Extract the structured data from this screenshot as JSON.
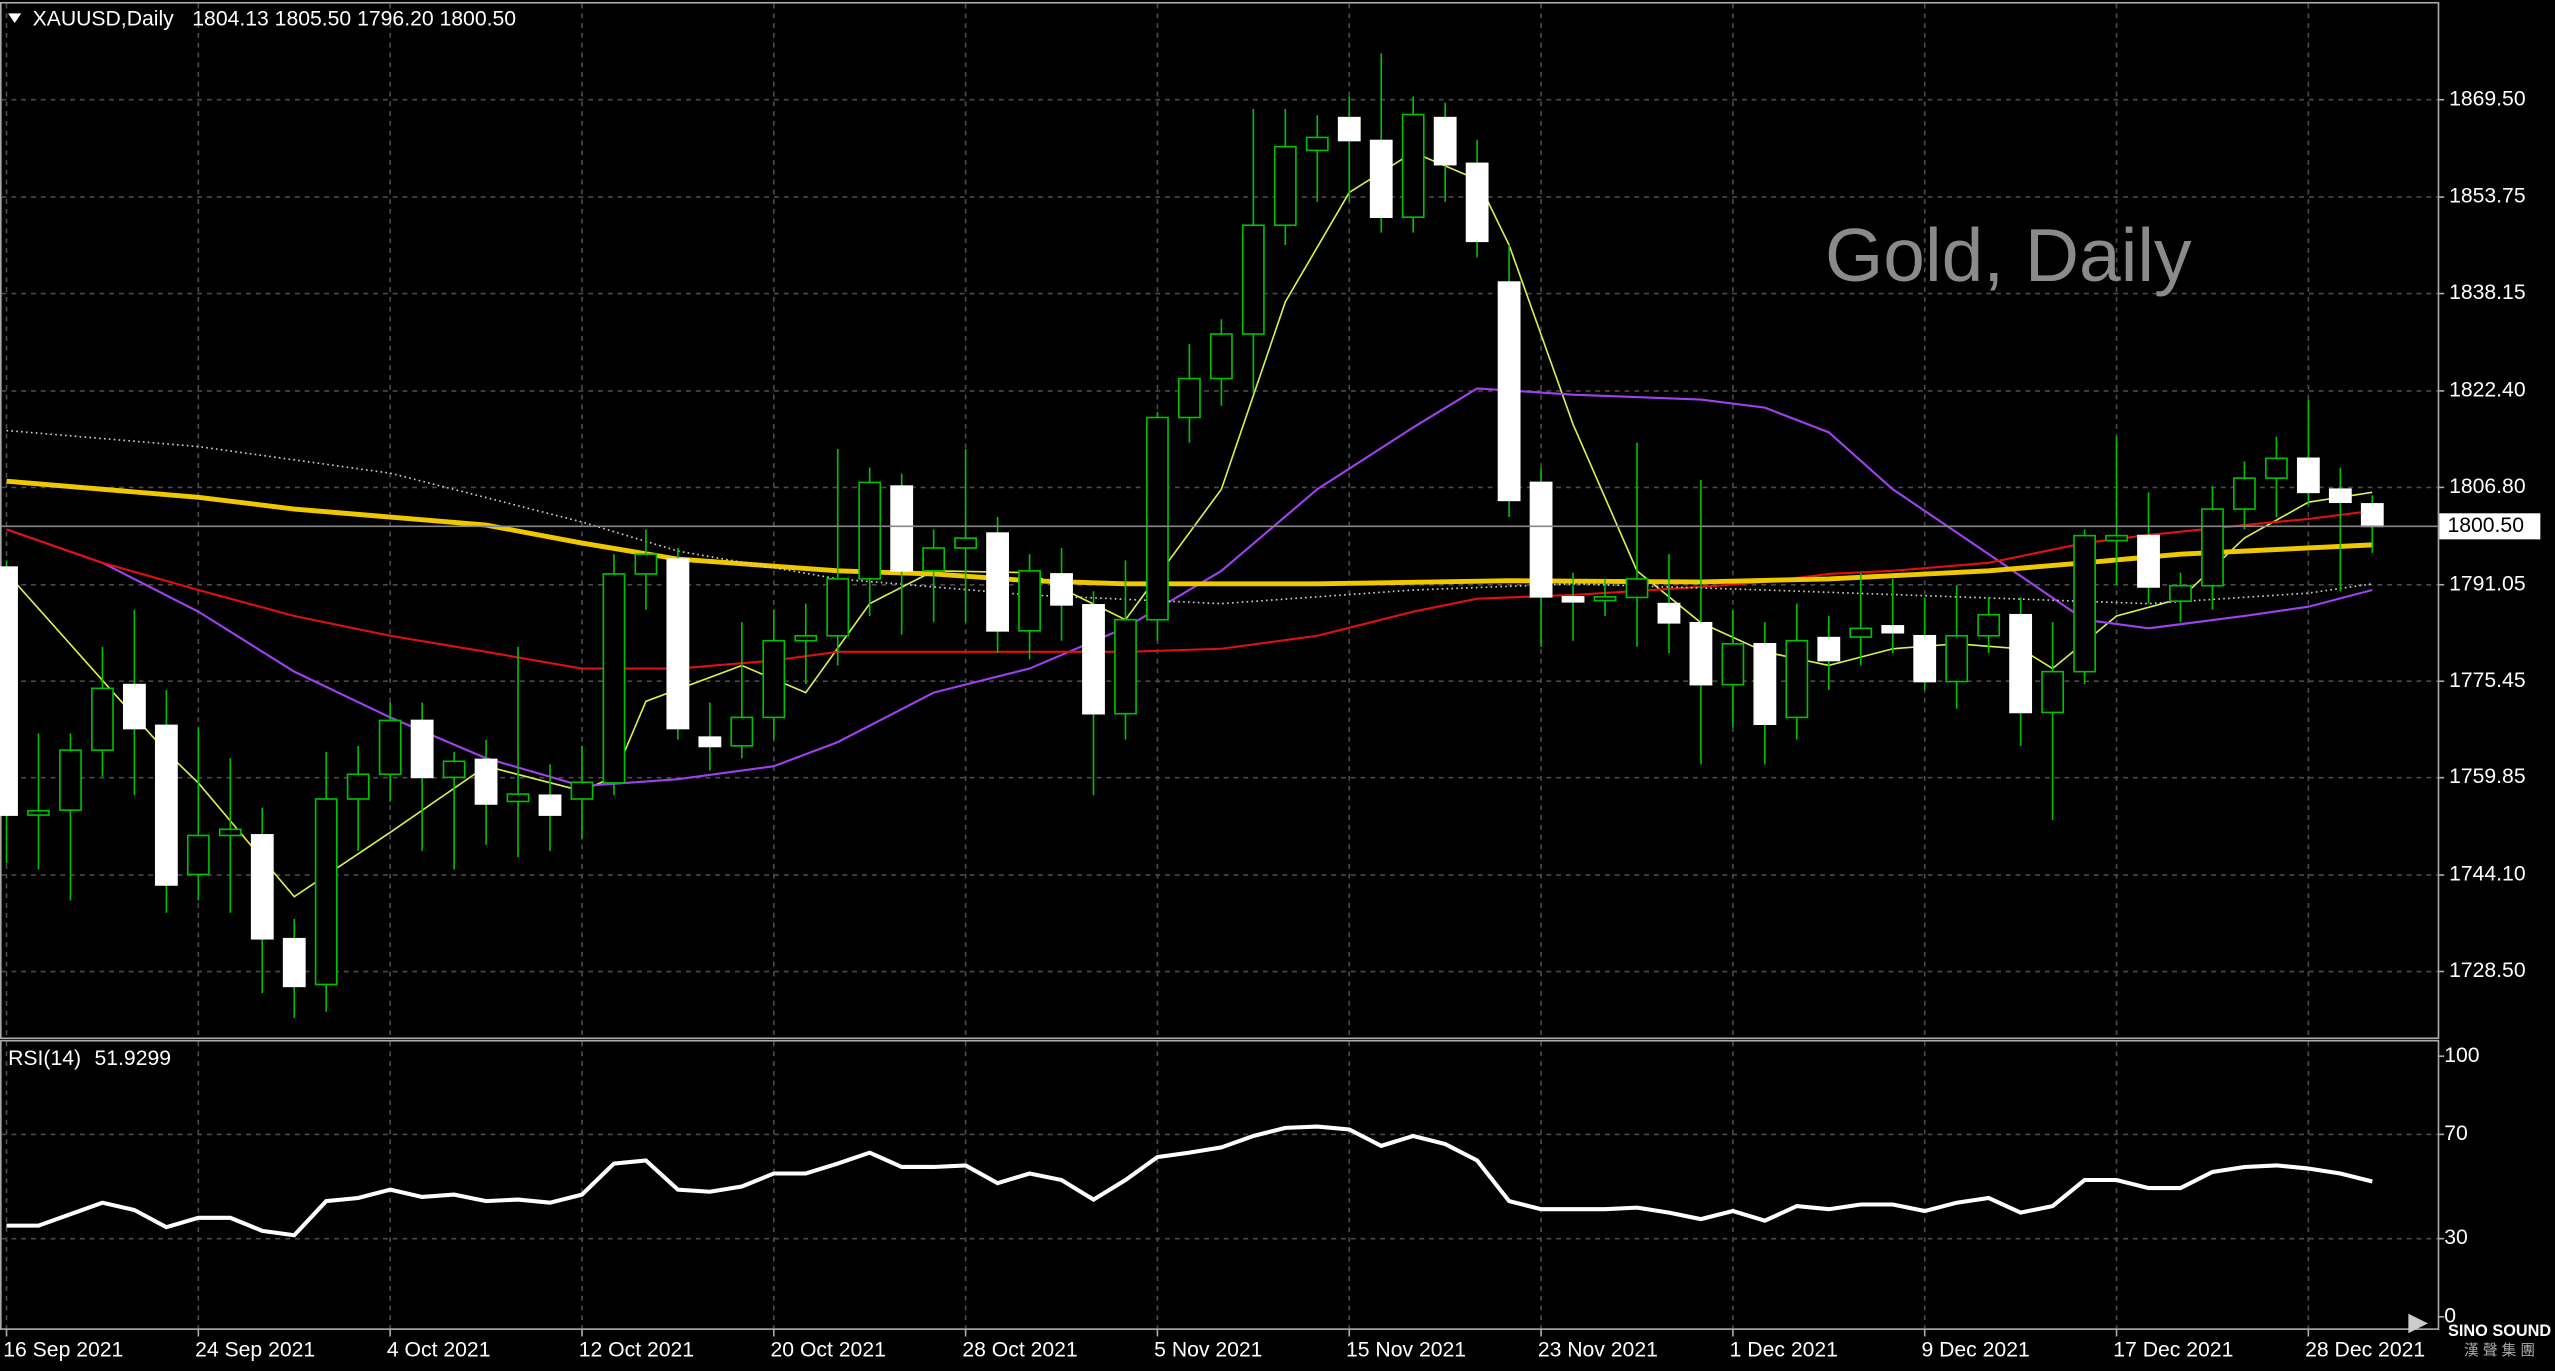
{
  "header": {
    "symbol": "XAUUSD,Daily",
    "ohlc": "1804.13 1805.50 1796.20 1800.50",
    "watermark": "Gold, Daily",
    "logo": "SINO SOUND",
    "logo_sub": "漢 聲 集 團"
  },
  "chart_data": [
    {
      "type": "candlestick",
      "bull_fill": "#000000",
      "bear_fill": "#ffffff",
      "wick_color": "#00c000",
      "grid": true,
      "ylim": [
        1717.7,
        1885.05
      ],
      "yticks": [
        {
          "value": 1869.5,
          "label": "1869.50"
        },
        {
          "value": 1853.75,
          "label": "1853.75"
        },
        {
          "value": 1838.15,
          "label": "1838.15"
        },
        {
          "value": 1822.4,
          "label": "1822.40"
        },
        {
          "value": 1806.8,
          "label": "1806.80"
        },
        {
          "value": 1791.05,
          "label": "1791.05"
        },
        {
          "value": 1775.45,
          "label": "1775.45"
        },
        {
          "value": 1759.85,
          "label": "1759.85"
        },
        {
          "value": 1744.1,
          "label": "1744.10"
        },
        {
          "value": 1728.5,
          "label": "1728.50"
        }
      ],
      "last_price": {
        "value": 1800.5,
        "label": "1800.50"
      },
      "open": [
        1793.9,
        1753.8,
        1754.6,
        1764.3,
        1774.9,
        1768.3,
        1744.2,
        1750.5,
        1750.6,
        1733.8,
        1726.4,
        1756.4,
        1760.4,
        1769.1,
        1759.9,
        1762.8,
        1756,
        1757,
        1756.4,
        1759,
        1792.8,
        1795.2,
        1766.4,
        1765,
        1769.6,
        1782,
        1782.8,
        1792,
        1807,
        1793.3,
        1797,
        1799.4,
        1783.6,
        1792.8,
        1787.8,
        1770.2,
        1785.4,
        1818.1,
        1824.4,
        1831.6,
        1849.2,
        1861.3,
        1866.6,
        1862.9,
        1850.5,
        1866.6,
        1859.2,
        1840,
        1807.6,
        1789.1,
        1788.5,
        1789,
        1788,
        1784.9,
        1774.9,
        1781.5,
        1769.6,
        1782.5,
        1782.6,
        1784.4,
        1782.8,
        1775.4,
        1782.8,
        1786.2,
        1770.4,
        1777,
        1798.2,
        1799,
        1788.4,
        1790.9,
        1803.3,
        1808.3,
        1811.5,
        1806.5,
        1804.13
      ],
      "high": [
        1795,
        1767,
        1767,
        1781,
        1787,
        1774,
        1768,
        1763,
        1755,
        1737,
        1764,
        1765,
        1772,
        1772,
        1764,
        1766,
        1781,
        1762,
        1765,
        1796,
        1800,
        1797,
        1772,
        1785,
        1787,
        1788,
        1813,
        1810,
        1809,
        1800,
        1813,
        1802,
        1796,
        1797,
        1790,
        1795,
        1819,
        1830,
        1834,
        1868,
        1868,
        1867,
        1870,
        1877,
        1870,
        1869,
        1863,
        1846,
        1810,
        1793,
        1792,
        1814,
        1796,
        1808,
        1787,
        1785,
        1788,
        1786,
        1793,
        1792,
        1789,
        1791,
        1789,
        1789,
        1785,
        1800,
        1815,
        1806,
        1793,
        1807,
        1811,
        1815,
        1821,
        1810,
        1805.5
      ],
      "low": [
        1746,
        1745,
        1740,
        1760,
        1757,
        1738,
        1740,
        1738,
        1725,
        1721,
        1722,
        1748,
        1756,
        1748,
        1745,
        1749,
        1747,
        1748,
        1750,
        1757,
        1787,
        1766,
        1761,
        1763,
        1766,
        1775,
        1778,
        1786,
        1783,
        1785,
        1785,
        1780,
        1779,
        1782,
        1757,
        1766,
        1782,
        1814,
        1820,
        1822,
        1846,
        1853,
        1853,
        1848,
        1848,
        1853,
        1844,
        1802,
        1781,
        1782,
        1786,
        1781,
        1780,
        1762,
        1768,
        1762,
        1766,
        1774,
        1778,
        1780,
        1774,
        1771,
        1780,
        1765,
        1753,
        1775,
        1791,
        1788,
        1785,
        1787,
        1800,
        1802,
        1804,
        1790,
        1796.2
      ],
      "close": [
        1753.8,
        1754.5,
        1764.3,
        1774.3,
        1767.8,
        1742.5,
        1750.5,
        1751.5,
        1733.8,
        1726.1,
        1756.4,
        1760.4,
        1769.1,
        1759.9,
        1762.5,
        1755.6,
        1757.2,
        1753.8,
        1759.1,
        1792.8,
        1796,
        1767.8,
        1764.9,
        1769.6,
        1782,
        1782.8,
        1792,
        1807.6,
        1793.3,
        1797,
        1798.6,
        1783.6,
        1793.3,
        1787.8,
        1770.2,
        1785.4,
        1818.1,
        1824.4,
        1831.6,
        1849.2,
        1861.9,
        1863.4,
        1862.9,
        1850.5,
        1867.1,
        1859,
        1846.6,
        1804.7,
        1789.1,
        1788.3,
        1789.1,
        1792,
        1784.9,
        1774.9,
        1781.5,
        1768.5,
        1782,
        1778.8,
        1784,
        1783.3,
        1775.4,
        1782.8,
        1786.2,
        1770.4,
        1777,
        1799,
        1799,
        1790.7,
        1790.9,
        1803.3,
        1808.3,
        1811.5,
        1806,
        1804.4,
        1800.5
      ],
      "series": [
        {
          "color": "#d8f050",
          "width": 1,
          "x": [
            0,
            5,
            6,
            9,
            12,
            15,
            18,
            19,
            20,
            23,
            25,
            27,
            29,
            32,
            35,
            38,
            40,
            42,
            44,
            46,
            47,
            49,
            51,
            53,
            55,
            57,
            59,
            61,
            63,
            64,
            66,
            68,
            70,
            72,
            74
          ],
          "values": [
            1793,
            1764,
            1759,
            1740.6,
            1751,
            1761.7,
            1757.7,
            1760,
            1772.2,
            1778,
            1773.6,
            1788,
            1793.3,
            1793,
            1785.4,
            1806.5,
            1836.8,
            1854.5,
            1861,
            1856.6,
            1846,
            1817,
            1793.3,
            1784.9,
            1780.2,
            1778,
            1780.7,
            1781.5,
            1780.7,
            1777.5,
            1786,
            1788.8,
            1798.6,
            1804.4,
            1806
          ]
        },
        {
          "color": "#a040f0",
          "width": 1.3,
          "x": [
            0,
            3,
            6,
            9,
            12,
            15,
            18,
            21,
            24,
            26,
            29,
            32,
            35,
            38,
            41,
            44,
            46,
            49,
            53,
            55,
            57,
            59,
            62,
            65,
            67,
            70,
            72,
            74
          ],
          "values": [
            1800,
            1794.6,
            1786.7,
            1777,
            1769.6,
            1763,
            1758.5,
            1759.6,
            1761.7,
            1765.6,
            1773.6,
            1777.5,
            1784.1,
            1793.3,
            1806.5,
            1816.5,
            1822.8,
            1821.8,
            1821,
            1819.7,
            1815.7,
            1806.5,
            1796,
            1785.4,
            1784,
            1786,
            1787.5,
            1790.2
          ]
        },
        {
          "color": "#e01010",
          "width": 1.3,
          "x": [
            0,
            3,
            6,
            9,
            12,
            15,
            18,
            21,
            24,
            26,
            29,
            32,
            35,
            38,
            41,
            44,
            46,
            49,
            53,
            55,
            57,
            59,
            62,
            65,
            67,
            70,
            72,
            74
          ],
          "values": [
            1800,
            1794.6,
            1790.2,
            1786,
            1782.8,
            1780.2,
            1777.5,
            1777.5,
            1778.8,
            1780.2,
            1780.2,
            1780.2,
            1780.2,
            1780.7,
            1782.8,
            1786.7,
            1788.8,
            1789.4,
            1790.7,
            1791.5,
            1792.8,
            1793.3,
            1794.6,
            1797.8,
            1799.1,
            1800.7,
            1801.7,
            1803
          ]
        },
        {
          "color": "#f0c800",
          "width": 3,
          "x": [
            0,
            6,
            9,
            15,
            18,
            21,
            26,
            29,
            32,
            35,
            41,
            47,
            53,
            57,
            62,
            65,
            68,
            72,
            74
          ],
          "values": [
            1807.8,
            1805.2,
            1803.3,
            1800.7,
            1797.8,
            1795.2,
            1793.3,
            1792.8,
            1791.7,
            1791.2,
            1791.2,
            1791.7,
            1791.5,
            1792,
            1793.3,
            1794.6,
            1796,
            1797,
            1797.5
          ]
        },
        {
          "color": "#d0d0d0",
          "width": 1,
          "dotted": true,
          "x": [
            0,
            6,
            12,
            18,
            21,
            26,
            32,
            38,
            44,
            49,
            55,
            61,
            67,
            72,
            74
          ],
          "values": [
            1816,
            1813.4,
            1809.1,
            1801.2,
            1796.5,
            1792,
            1789.4,
            1788,
            1790.2,
            1791.2,
            1790.2,
            1789.1,
            1788,
            1789.7,
            1791.2
          ]
        }
      ]
    },
    {
      "type": "line",
      "title": "RSI(14)",
      "color": "#ffffff",
      "ylim": [
        -4.4,
        106.25
      ],
      "yticks": [
        100,
        70,
        30,
        0
      ],
      "categories": [
        "16 Sep 2021",
        null,
        null,
        null,
        null,
        null,
        "24 Sep 2021",
        null,
        null,
        null,
        null,
        null,
        "4 Oct 2021",
        null,
        null,
        null,
        null,
        null,
        "12 Oct 2021",
        null,
        null,
        null,
        null,
        null,
        "20 Oct 2021",
        null,
        null,
        null,
        null,
        null,
        "28 Oct 2021",
        null,
        null,
        null,
        null,
        null,
        "5 Nov 2021",
        null,
        null,
        null,
        null,
        null,
        "15 Nov 2021",
        null,
        null,
        null,
        null,
        null,
        "23 Nov 2021",
        null,
        null,
        null,
        null,
        null,
        "1 Dec 2021",
        null,
        null,
        null,
        null,
        null,
        "9 Dec 2021",
        null,
        null,
        null,
        null,
        null,
        "17 Dec 2021",
        null,
        null,
        null,
        null,
        null,
        "28 Dec 2021",
        null,
        null
      ],
      "values": [
        35,
        35,
        39.4,
        43.8,
        41,
        34.4,
        38,
        38,
        33,
        31.3,
        44.4,
        45.6,
        48.8,
        46,
        46.9,
        44.4,
        45,
        43.8,
        46.9,
        58.8,
        60,
        48.8,
        48,
        50,
        55,
        55,
        58.8,
        63,
        57.5,
        57.5,
        58.1,
        51.3,
        55,
        52.5,
        45,
        52.5,
        61.3,
        63,
        65,
        69.4,
        72.5,
        73,
        71.9,
        65.6,
        69.4,
        66.3,
        60,
        44.4,
        41.3,
        41.3,
        41.3,
        41.9,
        40,
        37.5,
        40.6,
        36.9,
        42.5,
        41.3,
        43.1,
        43.1,
        40.6,
        43.8,
        45.6,
        40,
        42.5,
        52.5,
        52.5,
        49.4,
        49.4,
        55.6,
        57.5,
        58.1,
        56.9,
        55,
        51.9299
      ]
    }
  ]
}
